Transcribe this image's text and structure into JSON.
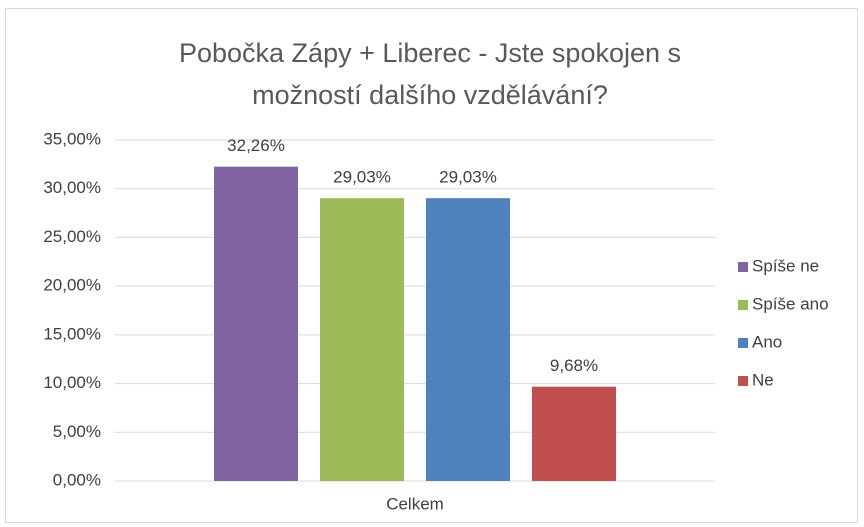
{
  "chart_data": {
    "type": "bar",
    "title": "Pobočka Zápy + Liberec - Jste spokojen s možností dalšího vzdělávání?",
    "categories": [
      "Celkem"
    ],
    "series": [
      {
        "name": "Spíše ne",
        "color": "#8064a2",
        "values": [
          32.26
        ],
        "value_labels": [
          "32,26%"
        ]
      },
      {
        "name": "Spíše ano",
        "color": "#9bbb59",
        "values": [
          29.03
        ],
        "value_labels": [
          "29,03%"
        ]
      },
      {
        "name": "Ano",
        "color": "#4f81bd",
        "values": [
          29.03
        ],
        "value_labels": [
          "29,03%"
        ]
      },
      {
        "name": "Ne",
        "color": "#c0504d",
        "values": [
          9.68
        ],
        "value_labels": [
          "9,68%"
        ]
      }
    ],
    "ylim": [
      0,
      35
    ],
    "yticks": [
      {
        "value": 0,
        "label": "0,00%"
      },
      {
        "value": 5,
        "label": "5,00%"
      },
      {
        "value": 10,
        "label": "10,00%"
      },
      {
        "value": 15,
        "label": "15,00%"
      },
      {
        "value": 20,
        "label": "20,00%"
      },
      {
        "value": 25,
        "label": "25,00%"
      },
      {
        "value": 30,
        "label": "30,00%"
      },
      {
        "value": 35,
        "label": "35,00%"
      }
    ],
    "grid": true,
    "legend": "right"
  }
}
